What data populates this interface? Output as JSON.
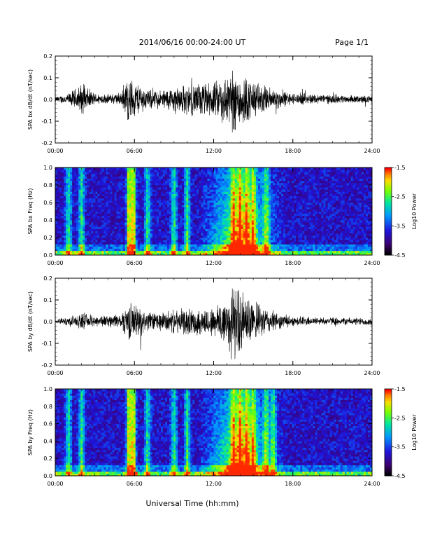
{
  "header": {
    "title": "2014/06/16  00:00-24:00 UT",
    "page": "Page 1/1"
  },
  "footer": {
    "xlabel": "Universal Time (hh:mm)"
  },
  "colorbar": {
    "label": "Log10 Power",
    "ticks": [
      "-1.5",
      "-2.5",
      "-3.5",
      "-4.5"
    ],
    "range": [
      -4.5,
      -1.5
    ],
    "colors": [
      "#000000",
      "#4b0082",
      "#0000ff",
      "#00bfff",
      "#00ff80",
      "#ffff00",
      "#ff8000",
      "#ff0000"
    ]
  },
  "chart_data": [
    {
      "type": "line",
      "ylabel": "SPA bx dB/dt (nT/sec)",
      "ylim": [
        -0.2,
        0.2
      ],
      "xlim": [
        0,
        24
      ],
      "xticks": [
        "00:00",
        "06:00",
        "12:00",
        "18:00",
        "24:00"
      ],
      "yticks": [
        "0.2",
        "0.1",
        "0.0",
        "-0.1",
        "-0.2"
      ],
      "series": [
        {
          "values_hours": [
            0,
            1,
            2,
            3,
            4,
            5,
            5.5,
            6,
            7,
            8,
            9,
            10,
            11,
            12,
            13,
            13.5,
            14,
            15,
            16,
            17,
            18,
            19,
            20,
            21,
            22,
            23,
            24
          ],
          "envelope": [
            0.015,
            0.03,
            0.08,
            0.03,
            0.025,
            0.035,
            0.12,
            0.1,
            0.05,
            0.05,
            0.07,
            0.08,
            0.09,
            0.09,
            0.14,
            0.17,
            0.15,
            0.1,
            0.07,
            0.05,
            0.03,
            0.03,
            0.025,
            0.025,
            0.02,
            0.02,
            0.02
          ]
        }
      ]
    },
    {
      "type": "heatmap",
      "ylabel": "SPA bx Freq (Hz)",
      "ylim": [
        0.0,
        1.0
      ],
      "xlim": [
        0,
        24
      ],
      "xticks": [
        "00:00",
        "06:00",
        "12:00",
        "18:00",
        "24:00"
      ],
      "yticks": [
        "1.0",
        "0.8",
        "0.6",
        "0.4",
        "0.2",
        "0.0"
      ],
      "zlim": [
        -4.5,
        -1.5
      ],
      "active_hours": [
        1.0,
        2.0,
        5.6,
        5.9,
        7.0,
        9.0,
        10.0,
        13.5,
        14.0,
        14.5,
        15.0,
        16.0
      ]
    },
    {
      "type": "line",
      "ylabel": "SPA by dB/dt (nT/sec)",
      "ylim": [
        -0.2,
        0.2
      ],
      "xlim": [
        0,
        24
      ],
      "xticks": [
        "00:00",
        "06:00",
        "12:00",
        "18:00",
        "24:00"
      ],
      "yticks": [
        "0.2",
        "0.1",
        "0.0",
        "-0.1",
        "-0.2"
      ],
      "series": [
        {
          "values_hours": [
            0,
            1,
            2,
            3,
            4,
            5,
            5.5,
            6,
            7,
            8,
            9,
            10,
            11,
            12,
            13,
            13.5,
            14,
            15,
            16,
            17,
            18,
            19,
            20,
            21,
            22,
            23,
            24
          ],
          "envelope": [
            0.01,
            0.025,
            0.04,
            0.03,
            0.03,
            0.04,
            0.1,
            0.09,
            0.05,
            0.05,
            0.06,
            0.07,
            0.07,
            0.08,
            0.15,
            0.2,
            0.17,
            0.1,
            0.07,
            0.04,
            0.025,
            0.025,
            0.02,
            0.02,
            0.02,
            0.02,
            0.02
          ]
        }
      ]
    },
    {
      "type": "heatmap",
      "ylabel": "SPA by Freq (Hz)",
      "ylim": [
        0.0,
        1.0
      ],
      "xlim": [
        0,
        24
      ],
      "xticks": [
        "00:00",
        "06:00",
        "12:00",
        "18:00",
        "24:00"
      ],
      "yticks": [
        "1.0",
        "0.8",
        "0.6",
        "0.4",
        "0.2",
        "0.0"
      ],
      "zlim": [
        -4.5,
        -1.5
      ],
      "active_hours": [
        1.0,
        2.0,
        5.6,
        5.9,
        7.0,
        9.0,
        10.0,
        13.5,
        14.0,
        14.5,
        15.0,
        16.0,
        16.5
      ]
    }
  ]
}
